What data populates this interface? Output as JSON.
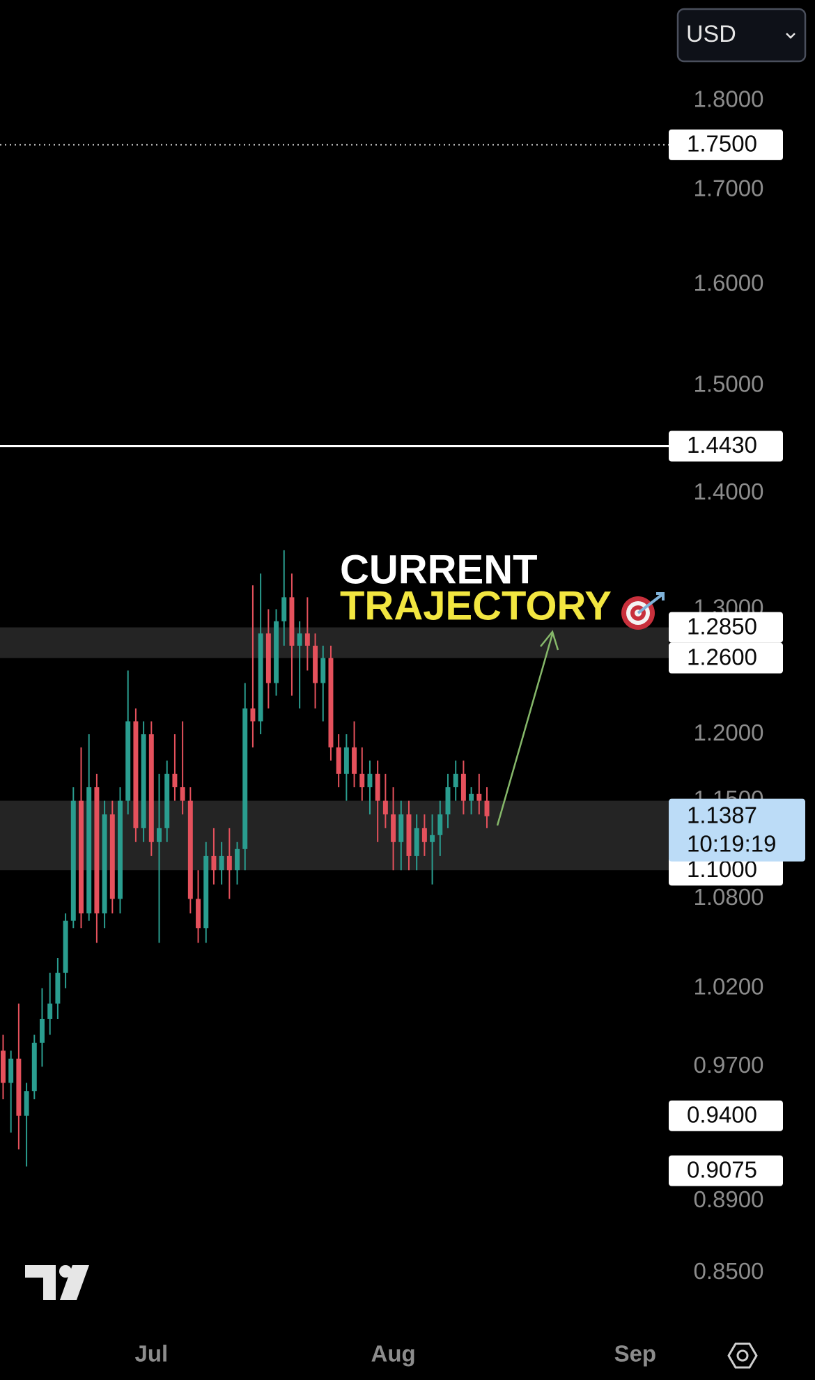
{
  "chart_data": {
    "type": "candlestick",
    "log": true,
    "ylim": [
      0.82,
      1.92
    ],
    "xlim": [
      0.6,
      86.3
    ],
    "yticks": [
      {
        "value": 1.8,
        "label": "1.8000"
      },
      {
        "value": 1.7,
        "label": "1.7000"
      },
      {
        "value": 1.6,
        "label": "1.6000"
      },
      {
        "value": 1.5,
        "label": "1.5000"
      },
      {
        "value": 1.4,
        "label": "1.4000"
      },
      {
        "value": 1.3,
        "label": "1.3000"
      },
      {
        "value": 1.2,
        "label": "1.2000"
      },
      {
        "value": 1.15,
        "label": "1.1500"
      },
      {
        "value": 1.08,
        "label": "1.0800"
      },
      {
        "value": 1.02,
        "label": "1.0200"
      },
      {
        "value": 0.97,
        "label": "0.9700"
      },
      {
        "value": 0.89,
        "label": "0.8900"
      },
      {
        "value": 0.85,
        "label": "0.8500"
      }
    ],
    "xticks": [
      {
        "value": 20,
        "label": "Jul"
      },
      {
        "value": 51,
        "label": "Aug"
      },
      {
        "value": 82,
        "label": "Sep"
      }
    ],
    "up_color": "#2a9d8f",
    "down_color": "#e5515c",
    "x": [
      1,
      2,
      3,
      4,
      5,
      6,
      7,
      8,
      9,
      10,
      11,
      12,
      13,
      14,
      15,
      16,
      17,
      18,
      19,
      20,
      21,
      22,
      23,
      24,
      25,
      26,
      27,
      28,
      29,
      30,
      31,
      32,
      33,
      34,
      35,
      36,
      37,
      38,
      39,
      40,
      41,
      42,
      43,
      44,
      45,
      46,
      47,
      48,
      49,
      50,
      51,
      52,
      53,
      54,
      55,
      56,
      57,
      58,
      59,
      60,
      61,
      62,
      63
    ],
    "ohlc": [
      [
        0.98,
        0.99,
        0.95,
        0.96
      ],
      [
        0.96,
        0.98,
        0.93,
        0.975
      ],
      [
        0.975,
        1.01,
        0.92,
        0.94
      ],
      [
        0.94,
        0.96,
        0.91,
        0.955
      ],
      [
        0.955,
        0.99,
        0.95,
        0.985
      ],
      [
        0.985,
        1.02,
        0.97,
        1.0
      ],
      [
        1.0,
        1.03,
        0.99,
        1.01
      ],
      [
        1.01,
        1.04,
        1.0,
        1.03
      ],
      [
        1.03,
        1.07,
        1.02,
        1.065
      ],
      [
        1.065,
        1.16,
        1.06,
        1.15
      ],
      [
        1.15,
        1.19,
        1.06,
        1.07
      ],
      [
        1.07,
        1.2,
        1.065,
        1.16
      ],
      [
        1.16,
        1.17,
        1.05,
        1.07
      ],
      [
        1.07,
        1.15,
        1.06,
        1.14
      ],
      [
        1.14,
        1.15,
        1.07,
        1.08
      ],
      [
        1.08,
        1.16,
        1.07,
        1.15
      ],
      [
        1.15,
        1.25,
        1.14,
        1.21
      ],
      [
        1.21,
        1.22,
        1.12,
        1.13
      ],
      [
        1.13,
        1.21,
        1.12,
        1.2
      ],
      [
        1.2,
        1.21,
        1.11,
        1.12
      ],
      [
        1.12,
        1.17,
        1.05,
        1.13
      ],
      [
        1.13,
        1.18,
        1.12,
        1.17
      ],
      [
        1.17,
        1.2,
        1.15,
        1.16
      ],
      [
        1.16,
        1.21,
        1.14,
        1.15
      ],
      [
        1.15,
        1.16,
        1.07,
        1.08
      ],
      [
        1.08,
        1.1,
        1.05,
        1.06
      ],
      [
        1.06,
        1.12,
        1.05,
        1.11
      ],
      [
        1.11,
        1.13,
        1.09,
        1.1
      ],
      [
        1.1,
        1.12,
        1.09,
        1.11
      ],
      [
        1.11,
        1.13,
        1.08,
        1.1
      ],
      [
        1.1,
        1.12,
        1.09,
        1.115
      ],
      [
        1.115,
        1.24,
        1.1,
        1.22
      ],
      [
        1.22,
        1.32,
        1.19,
        1.21
      ],
      [
        1.21,
        1.33,
        1.2,
        1.28
      ],
      [
        1.28,
        1.3,
        1.22,
        1.24
      ],
      [
        1.24,
        1.3,
        1.23,
        1.29
      ],
      [
        1.29,
        1.35,
        1.27,
        1.31
      ],
      [
        1.31,
        1.33,
        1.23,
        1.27
      ],
      [
        1.27,
        1.29,
        1.22,
        1.28
      ],
      [
        1.28,
        1.31,
        1.25,
        1.27
      ],
      [
        1.27,
        1.28,
        1.22,
        1.24
      ],
      [
        1.24,
        1.27,
        1.21,
        1.26
      ],
      [
        1.26,
        1.27,
        1.18,
        1.19
      ],
      [
        1.19,
        1.2,
        1.16,
        1.17
      ],
      [
        1.17,
        1.2,
        1.15,
        1.19
      ],
      [
        1.19,
        1.21,
        1.16,
        1.17
      ],
      [
        1.17,
        1.19,
        1.15,
        1.16
      ],
      [
        1.16,
        1.18,
        1.14,
        1.17
      ],
      [
        1.17,
        1.18,
        1.12,
        1.15
      ],
      [
        1.15,
        1.17,
        1.13,
        1.14
      ],
      [
        1.14,
        1.16,
        1.1,
        1.12
      ],
      [
        1.12,
        1.15,
        1.1,
        1.14
      ],
      [
        1.14,
        1.15,
        1.1,
        1.11
      ],
      [
        1.11,
        1.14,
        1.1,
        1.13
      ],
      [
        1.13,
        1.14,
        1.11,
        1.12
      ],
      [
        1.12,
        1.14,
        1.09,
        1.125
      ],
      [
        1.125,
        1.15,
        1.11,
        1.14
      ],
      [
        1.14,
        1.17,
        1.13,
        1.16
      ],
      [
        1.16,
        1.18,
        1.15,
        1.17
      ],
      [
        1.17,
        1.18,
        1.14,
        1.15
      ],
      [
        1.15,
        1.16,
        1.14,
        1.155
      ],
      [
        1.155,
        1.17,
        1.14,
        1.15
      ],
      [
        1.15,
        1.16,
        1.13,
        1.1387
      ]
    ],
    "zones": [
      {
        "low": 1.26,
        "high": 1.285
      },
      {
        "low": 1.1,
        "high": 1.15
      }
    ],
    "price_labels": [
      {
        "value": 1.75,
        "label": "1.7500",
        "line": "dotted"
      },
      {
        "value": 1.443,
        "label": "1.4430",
        "line": "solid"
      },
      {
        "value": 1.285,
        "label": "1.2850"
      },
      {
        "value": 1.26,
        "label": "1.2600"
      },
      {
        "value": 1.1,
        "label": "1.1000"
      },
      {
        "value": 0.94,
        "label": "0.9400"
      },
      {
        "value": 0.9075,
        "label": "0.9075"
      }
    ],
    "current_price": {
      "value": 1.1387,
      "label": "1.1387",
      "countdown": "10:19:19"
    },
    "annotation": {
      "lines": [
        {
          "text": "CURRENT",
          "color": "#ffffff"
        },
        {
          "text": "TRAJECTORY",
          "color": "#f2e640"
        }
      ]
    }
  },
  "ui": {
    "currency": "USD"
  }
}
